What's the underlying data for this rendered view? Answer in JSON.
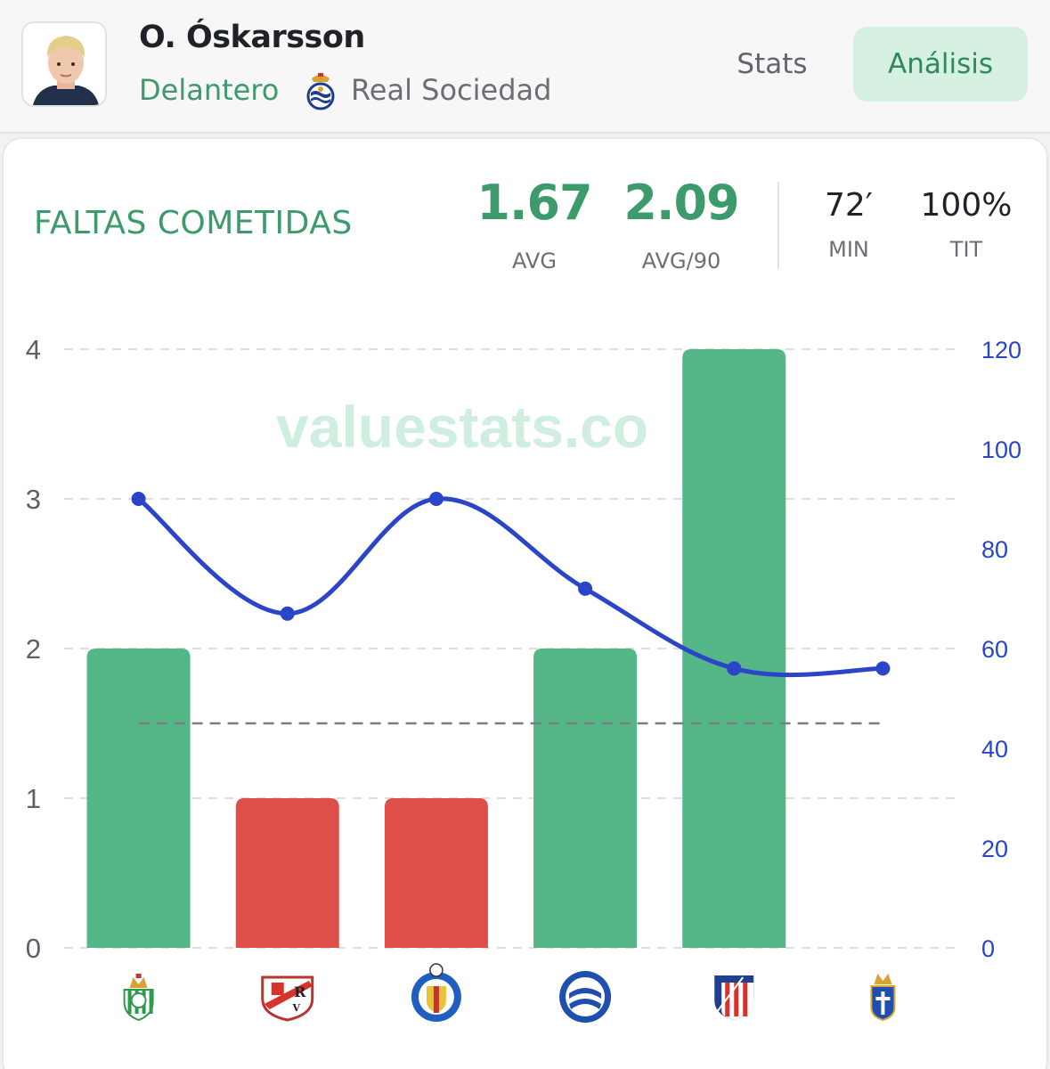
{
  "player": {
    "name": "O. Óskarsson",
    "position": "Delantero",
    "club": "Real Sociedad"
  },
  "tabs": {
    "stats": "Stats",
    "analisis": "Análisis"
  },
  "section": {
    "title": "FALTAS COMETIDAS"
  },
  "summary": {
    "avg_value": "1.67",
    "avg_label": "AVG",
    "avg90_value": "2.09",
    "avg90_label": "AVG/90",
    "min_value": "72′",
    "min_label": "MIN",
    "tit_value": "100%",
    "tit_label": "TIT"
  },
  "watermark": "valuestats.co",
  "colors": {
    "accent_green": "#3d9a6b",
    "bar_green": "#55b788",
    "bar_red": "#de4f4a",
    "line_blue": "#2a45c8",
    "reference_line": "#7a7d82"
  },
  "chart_data": {
    "type": "bar",
    "categories": [
      "Real Betis",
      "Rayo Vallecano",
      "Getafe C.F.",
      "Deportivo Alavés",
      "Atlético de Madrid",
      "Real Oviedo"
    ],
    "category_icons": [
      "betis-crest-icon",
      "rayo-crest-icon",
      "getafe-crest-icon",
      "alaves-crest-icon",
      "atletico-crest-icon",
      "oviedo-crest-icon"
    ],
    "series": [
      {
        "values": [
          2,
          1,
          1,
          2,
          4,
          0
        ],
        "bar_colors": [
          "#55b788",
          "#de4f4a",
          "#de4f4a",
          "#55b788",
          "#55b788",
          "#55b788"
        ],
        "axis": "left"
      },
      {
        "values": [
          90,
          67,
          90,
          72,
          56,
          56
        ],
        "type": "line",
        "color": "#2a45c8",
        "axis": "right"
      }
    ],
    "reference_line": {
      "value": 1.5,
      "style": "dashed"
    },
    "ylim": [
      0,
      4
    ],
    "y_ticks": [
      "0",
      "1",
      "2",
      "3",
      "4"
    ],
    "y2lim": [
      0,
      120
    ],
    "y2_ticks": [
      "0",
      "20",
      "40",
      "60",
      "80",
      "100",
      "120"
    ],
    "grid": true,
    "legend": "none"
  }
}
